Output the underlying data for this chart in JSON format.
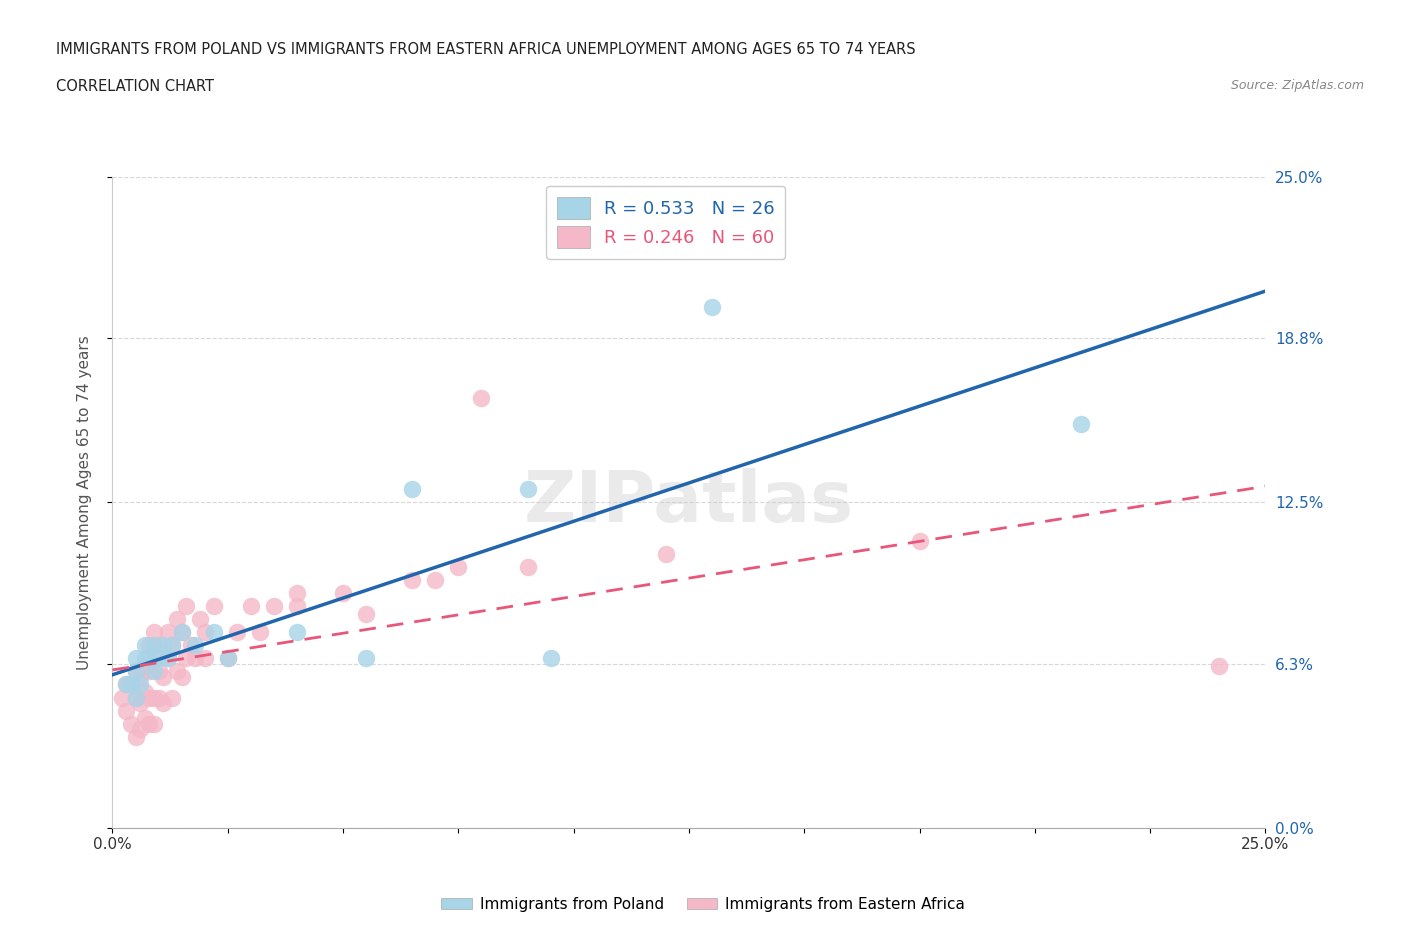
{
  "title_line1": "IMMIGRANTS FROM POLAND VS IMMIGRANTS FROM EASTERN AFRICA UNEMPLOYMENT AMONG AGES 65 TO 74 YEARS",
  "title_line2": "CORRELATION CHART",
  "source": "Source: ZipAtlas.com",
  "ylabel": "Unemployment Among Ages 65 to 74 years",
  "xmin": 0.0,
  "xmax": 0.25,
  "ymin": 0.0,
  "ymax": 0.25,
  "yticks": [
    0.0,
    0.063,
    0.125,
    0.188,
    0.25
  ],
  "ytick_labels": [
    "0.0%",
    "6.3%",
    "12.5%",
    "18.8%",
    "25.0%"
  ],
  "xticks": [
    0.0,
    0.025,
    0.05,
    0.075,
    0.1,
    0.125,
    0.15,
    0.175,
    0.2,
    0.225,
    0.25
  ],
  "xtick_labels_ends": [
    "0.0%",
    "25.0%"
  ],
  "poland_color": "#a8d4e8",
  "eastern_africa_color": "#f4b8c8",
  "poland_line_color": "#2166ac",
  "eastern_africa_line_color": "#e8567a",
  "right_label_color": "#2166ac",
  "poland_R": 0.533,
  "poland_N": 26,
  "eastern_africa_R": 0.246,
  "eastern_africa_N": 60,
  "poland_scatter_x": [
    0.003,
    0.004,
    0.005,
    0.005,
    0.005,
    0.006,
    0.007,
    0.007,
    0.008,
    0.009,
    0.009,
    0.01,
    0.011,
    0.012,
    0.013,
    0.015,
    0.018,
    0.022,
    0.025,
    0.04,
    0.055,
    0.065,
    0.09,
    0.095,
    0.13,
    0.21
  ],
  "poland_scatter_y": [
    0.055,
    0.055,
    0.05,
    0.06,
    0.065,
    0.055,
    0.065,
    0.07,
    0.065,
    0.06,
    0.07,
    0.065,
    0.07,
    0.065,
    0.07,
    0.075,
    0.07,
    0.075,
    0.065,
    0.075,
    0.065,
    0.13,
    0.13,
    0.065,
    0.2,
    0.155
  ],
  "eastern_africa_scatter_x": [
    0.002,
    0.003,
    0.003,
    0.004,
    0.004,
    0.005,
    0.005,
    0.005,
    0.006,
    0.006,
    0.006,
    0.007,
    0.007,
    0.007,
    0.008,
    0.008,
    0.008,
    0.008,
    0.009,
    0.009,
    0.009,
    0.009,
    0.01,
    0.01,
    0.01,
    0.011,
    0.011,
    0.012,
    0.012,
    0.013,
    0.013,
    0.014,
    0.014,
    0.015,
    0.015,
    0.016,
    0.016,
    0.017,
    0.018,
    0.019,
    0.02,
    0.02,
    0.022,
    0.025,
    0.027,
    0.03,
    0.032,
    0.035,
    0.04,
    0.04,
    0.05,
    0.055,
    0.065,
    0.07,
    0.075,
    0.08,
    0.09,
    0.12,
    0.175,
    0.24
  ],
  "eastern_africa_scatter_y": [
    0.05,
    0.045,
    0.055,
    0.04,
    0.055,
    0.035,
    0.05,
    0.06,
    0.038,
    0.048,
    0.058,
    0.042,
    0.052,
    0.062,
    0.04,
    0.05,
    0.06,
    0.07,
    0.04,
    0.05,
    0.065,
    0.075,
    0.05,
    0.06,
    0.07,
    0.048,
    0.058,
    0.065,
    0.075,
    0.05,
    0.07,
    0.06,
    0.08,
    0.058,
    0.075,
    0.065,
    0.085,
    0.07,
    0.065,
    0.08,
    0.075,
    0.065,
    0.085,
    0.065,
    0.075,
    0.085,
    0.075,
    0.085,
    0.085,
    0.09,
    0.09,
    0.082,
    0.095,
    0.095,
    0.1,
    0.165,
    0.1,
    0.105,
    0.11,
    0.062
  ],
  "background_color": "#ffffff",
  "grid_color": "#d8d8d8"
}
